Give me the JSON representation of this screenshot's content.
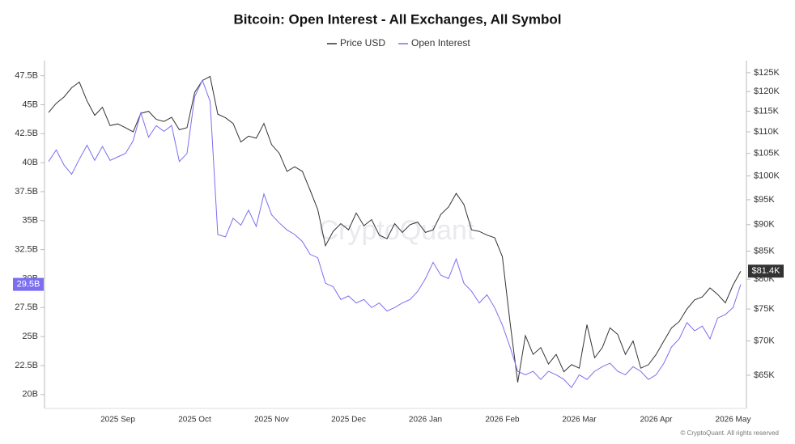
{
  "chart_data": {
    "type": "line",
    "title": "Bitcoin: Open Interest - All Exchanges, All Symbol",
    "watermark": "CryptoQuant",
    "footer": "© CryptoQuant. All rights reserved",
    "categories": [
      null,
      null,
      null,
      null,
      null,
      null,
      null,
      null,
      null,
      "2025 Sep",
      null,
      null,
      null,
      null,
      null,
      null,
      null,
      null,
      null,
      "2025 Oct",
      null,
      null,
      null,
      null,
      null,
      null,
      null,
      null,
      null,
      "2025 Nov",
      null,
      null,
      null,
      null,
      null,
      null,
      null,
      null,
      null,
      "2025 Dec",
      null,
      null,
      null,
      null,
      null,
      null,
      null,
      null,
      null,
      "2026 Jan",
      null,
      null,
      null,
      null,
      null,
      null,
      null,
      null,
      null,
      "2026 Feb",
      null,
      null,
      null,
      null,
      null,
      null,
      null,
      null,
      null,
      "2026 Mar",
      null,
      null,
      null,
      null,
      null,
      null,
      null,
      null,
      null,
      "2026 Apr",
      null,
      null,
      null,
      null,
      null,
      null,
      null,
      null,
      null,
      "2026 May",
      null
    ],
    "series": [
      {
        "name": "Price USD",
        "color": "#333333",
        "axis": "y2",
        "last_label": {
          "value": 81.4,
          "label": "$81.4K"
        },
        "values": [
          114.7,
          117,
          118.6,
          121,
          122.5,
          117.6,
          114,
          116,
          111.5,
          111.9,
          111,
          110,
          114.5,
          115,
          113,
          112.5,
          113.5,
          110.5,
          111,
          119.8,
          122.9,
          124,
          114.3,
          113.4,
          112,
          107.6,
          109,
          108.5,
          112,
          107,
          105,
          101,
          102,
          101,
          97,
          93,
          86,
          88.7,
          90.2,
          89,
          92.3,
          89.8,
          91,
          88,
          87.3,
          90.2,
          88.5,
          90,
          90.5,
          88.5,
          89,
          92,
          93.5,
          96.3,
          94,
          89,
          88.7,
          88,
          87.5,
          84,
          72.9,
          64,
          70.8,
          68,
          69,
          66.6,
          68,
          65.5,
          66.5,
          66,
          72.5,
          67.5,
          69,
          72,
          71,
          68,
          70,
          66,
          66.5,
          68,
          70,
          72,
          73,
          75,
          76.5,
          77,
          78.5,
          77.4,
          76,
          79,
          81.4
        ]
      },
      {
        "name": "Open Interest",
        "color": "#7b6ff0",
        "axis": "y",
        "last_label": {
          "value": 29.5,
          "label": "29.5B"
        },
        "values": [
          40.1,
          41.1,
          39.8,
          39,
          40.3,
          41.5,
          40.2,
          41.4,
          40.2,
          40.5,
          40.8,
          41.9,
          44.3,
          42.2,
          43.2,
          42.7,
          43.2,
          40.1,
          40.8,
          45.7,
          47.1,
          45.3,
          33.8,
          33.6,
          35.2,
          34.6,
          35.9,
          34.5,
          37.3,
          35.5,
          34.8,
          34.2,
          33.8,
          33.2,
          32.1,
          31.8,
          29.6,
          29.3,
          28.2,
          28.5,
          27.9,
          28.2,
          27.5,
          27.9,
          27.2,
          27.5,
          27.9,
          28.2,
          28.9,
          30,
          31.4,
          30.3,
          30,
          31.7,
          29.6,
          28.9,
          27.9,
          28.6,
          27.5,
          26,
          24.1,
          22,
          21.7,
          22,
          21.3,
          22,
          21.7,
          21.3,
          20.6,
          21.7,
          21.3,
          22,
          22.4,
          22.7,
          22,
          21.7,
          22.4,
          22,
          21.3,
          21.7,
          22.7,
          24.1,
          24.8,
          26.2,
          25.5,
          25.9,
          24.8,
          26.6,
          26.9,
          27.5,
          29.5
        ]
      }
    ],
    "ylim": [
      18.8,
      48.8
    ],
    "yticks": [
      {
        "value": 20,
        "label": "20B"
      },
      {
        "value": 22.5,
        "label": "22.5B"
      },
      {
        "value": 25,
        "label": "25B"
      },
      {
        "value": 27.5,
        "label": "27.5B"
      },
      {
        "value": 30,
        "label": "30B"
      },
      {
        "value": 32.5,
        "label": "32.5B"
      },
      {
        "value": 35,
        "label": "35B"
      },
      {
        "value": 37.5,
        "label": "37.5B"
      },
      {
        "value": 40,
        "label": "40B"
      },
      {
        "value": 42.5,
        "label": "42.5B"
      },
      {
        "value": 45,
        "label": "45B"
      },
      {
        "value": 47.5,
        "label": "47.5B"
      }
    ],
    "y2lim": [
      60.5,
      128.3
    ],
    "y2log": true,
    "y2ticks": [
      {
        "value": 65,
        "label": "$65K"
      },
      {
        "value": 70,
        "label": "$70K"
      },
      {
        "value": 75,
        "label": "$75K"
      },
      {
        "value": 80,
        "label": "$80K"
      },
      {
        "value": 85,
        "label": "$85K"
      },
      {
        "value": 90,
        "label": "$90K"
      },
      {
        "value": 95,
        "label": "$95K"
      },
      {
        "value": 100,
        "label": "$100K"
      },
      {
        "value": 105,
        "label": "$105K"
      },
      {
        "value": 110,
        "label": "$110K"
      },
      {
        "value": 115,
        "label": "$115K"
      },
      {
        "value": 120,
        "label": "$120K"
      },
      {
        "value": 125,
        "label": "$125K"
      }
    ]
  }
}
